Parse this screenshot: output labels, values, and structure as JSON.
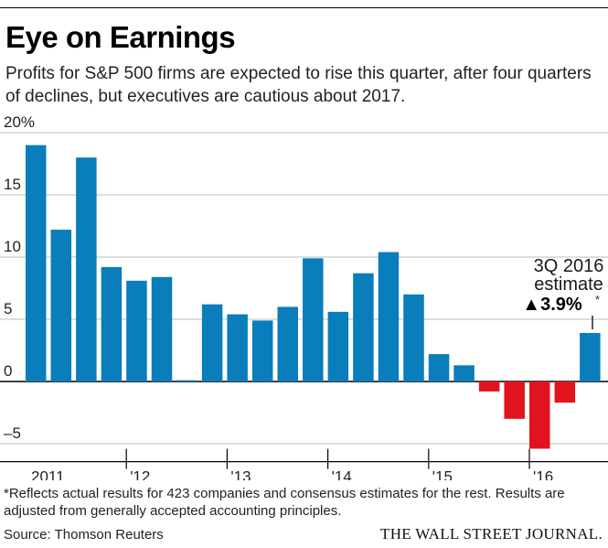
{
  "header": {
    "title": "Eye on Earnings",
    "subtitle": "Profits for S&P 500 firms are expected to rise this quarter, after four quarters of declines, but executives are cautious about 2017."
  },
  "colors": {
    "positive": "#0a7dbb",
    "negative": "#e0131f"
  },
  "chart_data": {
    "type": "bar",
    "title": "Eye on Earnings",
    "ylim": [
      -6,
      20
    ],
    "yticks": [
      20,
      15,
      10,
      5,
      0,
      -5
    ],
    "ytick_labels": [
      "20%",
      "15",
      "10",
      "5",
      "0",
      "–5"
    ],
    "year_labels": [
      "2011",
      "'12",
      "'13",
      "'14",
      "'15",
      "'16"
    ],
    "categories": [
      "1Q 2011",
      "2Q 2011",
      "3Q 2011",
      "4Q 2011",
      "1Q 2012",
      "2Q 2012",
      "3Q 2012",
      "4Q 2012",
      "1Q 2013",
      "2Q 2013",
      "3Q 2013",
      "4Q 2013",
      "1Q 2014",
      "2Q 2014",
      "3Q 2014",
      "4Q 2014",
      "1Q 2015",
      "2Q 2015",
      "3Q 2015",
      "4Q 2015",
      "1Q 2016",
      "2Q 2016",
      "3Q 2016"
    ],
    "values": [
      19.0,
      12.2,
      18.0,
      9.2,
      8.1,
      8.4,
      0.1,
      6.2,
      5.4,
      4.9,
      6.0,
      9.9,
      5.6,
      8.7,
      10.4,
      7.0,
      2.2,
      1.3,
      -0.8,
      -3.0,
      -5.4,
      -1.7,
      3.9
    ],
    "grid": true,
    "annotation": {
      "line1": "3Q 2016",
      "line2": "estimate",
      "value": "▲3.9%",
      "marker": "*"
    }
  },
  "footer": {
    "footnote": "*Reflects actual results for 423 companies and consensus estimates for the rest. Results are adjusted from generally accepted accounting principles.",
    "source": "Source: Thomson Reuters",
    "publisher": "THE WALL STREET JOURNAL."
  }
}
